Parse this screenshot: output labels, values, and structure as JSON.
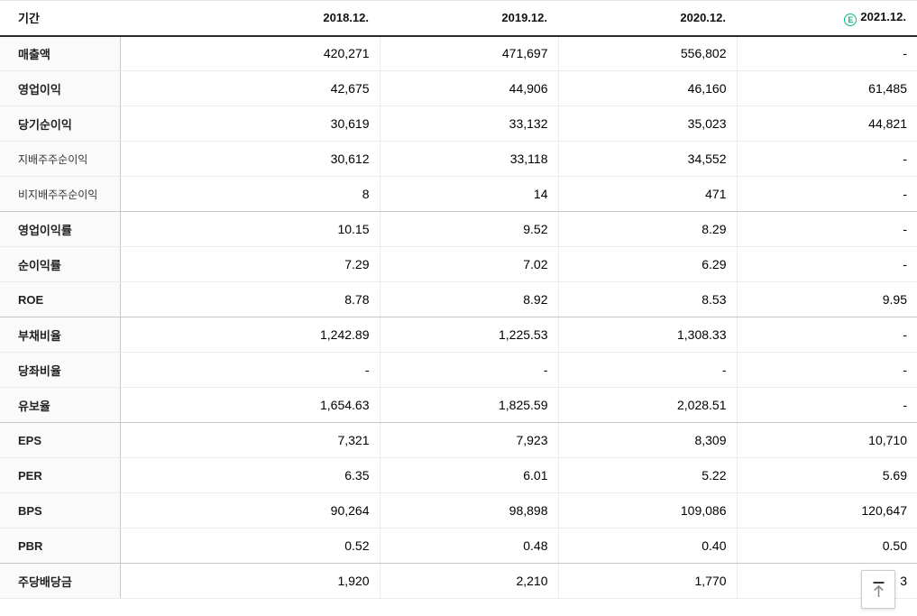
{
  "table": {
    "header": {
      "period_label": "기간",
      "columns": [
        "2018.12.",
        "2019.12.",
        "2020.12.",
        "2021.12."
      ],
      "estimate_badge": "E",
      "estimate_column_index": 3
    },
    "rows": [
      {
        "label": "매출액",
        "values": [
          "420,271",
          "471,697",
          "556,802",
          "-"
        ],
        "style": "main",
        "group_end": false
      },
      {
        "label": "영업이익",
        "values": [
          "42,675",
          "44,906",
          "46,160",
          "61,485"
        ],
        "style": "main",
        "group_end": false
      },
      {
        "label": "당기순이익",
        "values": [
          "30,619",
          "33,132",
          "35,023",
          "44,821"
        ],
        "style": "main",
        "group_end": false
      },
      {
        "label": "지배주주순이익",
        "values": [
          "30,612",
          "33,118",
          "34,552",
          "-"
        ],
        "style": "sub",
        "group_end": false
      },
      {
        "label": "비지배주주순이익",
        "values": [
          "8",
          "14",
          "471",
          "-"
        ],
        "style": "sub",
        "group_end": true
      },
      {
        "label": "영업이익률",
        "values": [
          "10.15",
          "9.52",
          "8.29",
          "-"
        ],
        "style": "main",
        "group_end": false
      },
      {
        "label": "순이익률",
        "values": [
          "7.29",
          "7.02",
          "6.29",
          "-"
        ],
        "style": "main",
        "group_end": false
      },
      {
        "label": "ROE",
        "values": [
          "8.78",
          "8.92",
          "8.53",
          "9.95"
        ],
        "style": "main",
        "group_end": true
      },
      {
        "label": "부채비율",
        "values": [
          "1,242.89",
          "1,225.53",
          "1,308.33",
          "-"
        ],
        "style": "main",
        "group_end": false
      },
      {
        "label": "당좌비율",
        "values": [
          "-",
          "-",
          "-",
          "-"
        ],
        "style": "main",
        "group_end": false
      },
      {
        "label": "유보율",
        "values": [
          "1,654.63",
          "1,825.59",
          "2,028.51",
          "-"
        ],
        "style": "main",
        "group_end": true
      },
      {
        "label": "EPS",
        "values": [
          "7,321",
          "7,923",
          "8,309",
          "10,710"
        ],
        "style": "main",
        "group_end": false
      },
      {
        "label": "PER",
        "values": [
          "6.35",
          "6.01",
          "5.22",
          "5.69"
        ],
        "style": "main",
        "group_end": false
      },
      {
        "label": "BPS",
        "values": [
          "90,264",
          "98,898",
          "109,086",
          "120,647"
        ],
        "style": "main",
        "group_end": false
      },
      {
        "label": "PBR",
        "values": [
          "0.52",
          "0.48",
          "0.40",
          "0.50"
        ],
        "style": "main",
        "group_end": true
      },
      {
        "label": "주당배당금",
        "values": [
          "1,920",
          "2,210",
          "1,770",
          "3"
        ],
        "style": "main",
        "group_end": false
      }
    ]
  },
  "scroll_top_button": {
    "icon": "arrow-up-to-top"
  },
  "colors": {
    "estimate_green": "#00bf73",
    "header_rule": "#2b2b2b",
    "label_column_bg": "#fafafa",
    "label_column_divider": "#c8c8c8",
    "row_line": "#ececec",
    "group_line": "#c6c6c6"
  }
}
